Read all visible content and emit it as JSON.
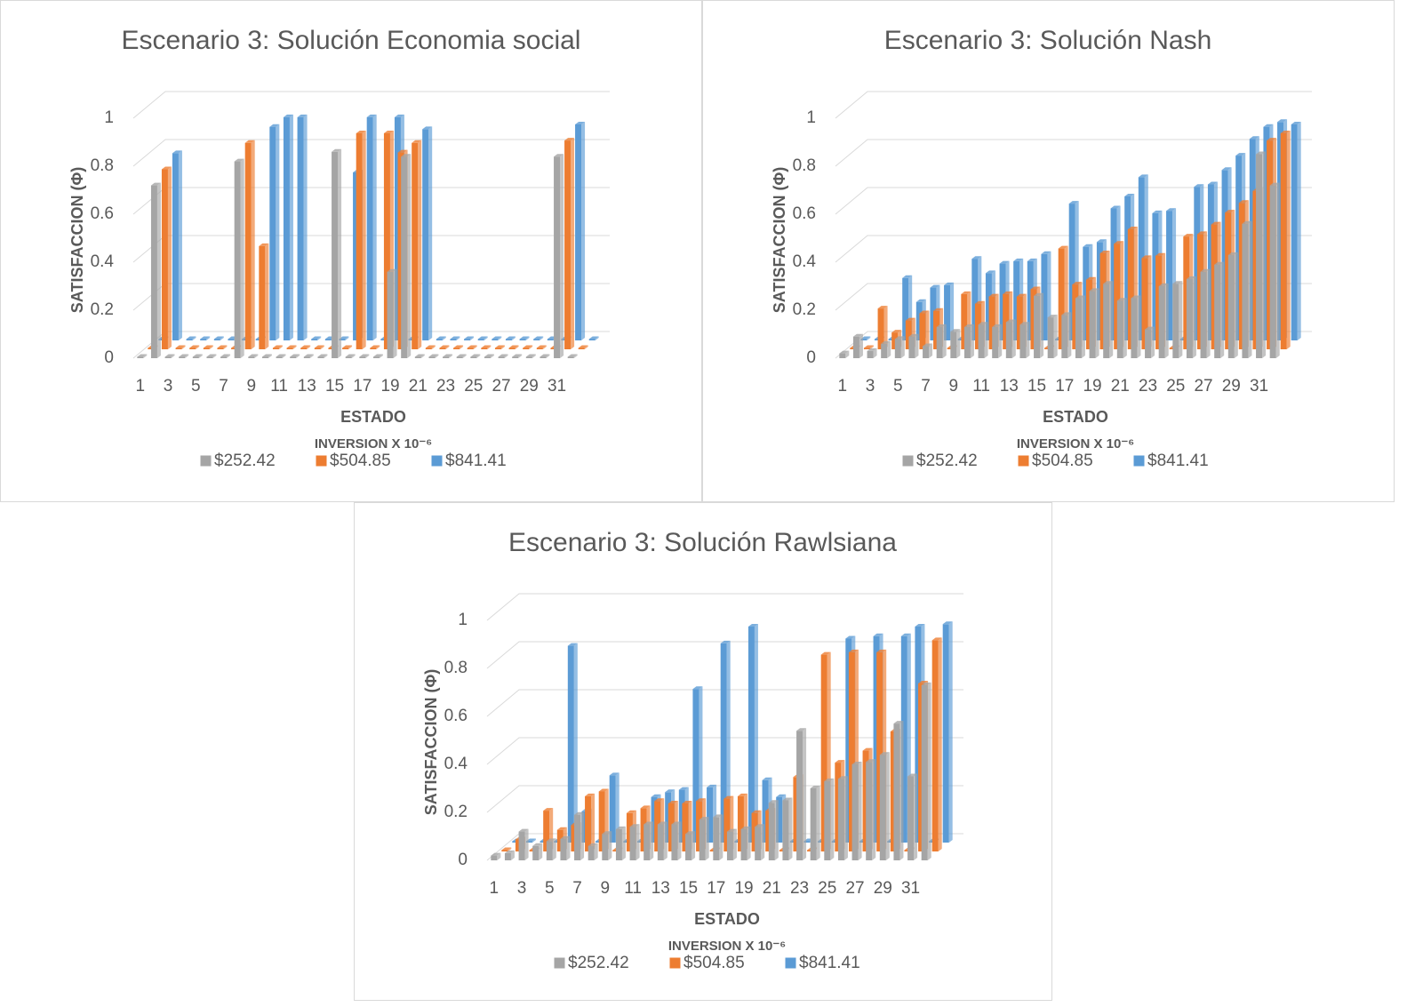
{
  "chart_data": [
    {
      "type": "bar3d",
      "title": "Escenario 3: Solución Economia social",
      "y_label": "SATISFACCION (Φ)",
      "x_label": "ESTADO",
      "legend_title": "INVERSION X 10⁻⁶",
      "categories": [
        "1",
        null,
        "3",
        null,
        "5",
        null,
        "7",
        null,
        "9",
        null,
        "11",
        null,
        "13",
        null,
        "15",
        null,
        "17",
        null,
        "19",
        null,
        "21",
        null,
        "23",
        null,
        "25",
        null,
        "27",
        null,
        "29",
        null,
        "31",
        null
      ],
      "ylim": [
        0,
        1
      ],
      "yticks": [
        0,
        0.2,
        0.4,
        0.6,
        0.8,
        1
      ],
      "grid": true,
      "legend": "bottom",
      "series": [
        {
          "name": "$252.42",
          "color": "#a5a5a5",
          "values": [
            0,
            0.72,
            0,
            0,
            0,
            0,
            0,
            0.82,
            0,
            0,
            0,
            0,
            0,
            0,
            0.86,
            0,
            0,
            0,
            0.36,
            0.84,
            0,
            0,
            0,
            0,
            0,
            0,
            0,
            0,
            0,
            0,
            0.84,
            0
          ]
        },
        {
          "name": "$504.85",
          "color": "#ed7d31",
          "values": [
            0,
            0.75,
            0,
            0,
            0,
            0,
            0,
            0.86,
            0.43,
            0,
            0,
            0,
            0,
            0,
            0,
            0.9,
            0,
            0.9,
            0.82,
            0.86,
            0,
            0,
            0,
            0,
            0,
            0,
            0,
            0,
            0,
            0,
            0.87,
            0
          ]
        },
        {
          "name": "$841.41",
          "color": "#5b9bd5",
          "values": [
            0,
            0.78,
            0,
            0,
            0,
            0,
            0,
            0,
            0.89,
            0.93,
            0.93,
            0,
            0,
            0,
            0.7,
            0.93,
            0,
            0.93,
            0,
            0.88,
            0,
            0,
            0,
            0,
            0,
            0,
            0,
            0,
            0,
            0,
            0.9,
            0
          ]
        }
      ]
    },
    {
      "type": "bar3d",
      "title": "Escenario 3: Solución Nash",
      "y_label": "SATISFACCION (Φ)",
      "x_label": "ESTADO",
      "legend_title": "INVERSION X 10⁻⁶",
      "categories": [
        "1",
        null,
        "3",
        null,
        "5",
        null,
        "7",
        null,
        "9",
        null,
        "11",
        null,
        "13",
        null,
        "15",
        null,
        "17",
        null,
        "19",
        null,
        "21",
        null,
        "23",
        null,
        "25",
        null,
        "27",
        null,
        "29",
        null,
        "31",
        null
      ],
      "ylim": [
        0,
        1
      ],
      "yticks": [
        0,
        0.2,
        0.4,
        0.6,
        0.8,
        1
      ],
      "grid": true,
      "legend": "bottom",
      "series": [
        {
          "name": "$252.42",
          "color": "#a5a5a5",
          "values": [
            0.02,
            0.09,
            0.03,
            0.06,
            0.08,
            0.09,
            0.05,
            0.13,
            0.11,
            0.13,
            0.14,
            0.13,
            0.15,
            0.14,
            0.26,
            0.17,
            0.18,
            0.25,
            0.28,
            0.31,
            0.24,
            0.25,
            0.12,
            0.3,
            0.31,
            0.33,
            0.36,
            0.39,
            0.43,
            0.56,
            0.85,
            0.72
          ]
        },
        {
          "name": "$504.85",
          "color": "#ed7d31",
          "values": [
            0,
            0,
            0.17,
            0.07,
            0.12,
            0.15,
            0.16,
            0,
            0.23,
            0.19,
            0.22,
            0.23,
            0.22,
            0.25,
            0,
            0.42,
            0.27,
            0.29,
            0.4,
            0.44,
            0.5,
            0.38,
            0.39,
            0,
            0.47,
            0.48,
            0.52,
            0.57,
            0.61,
            0.66,
            0.87,
            0.9
          ]
        },
        {
          "name": "$841.41",
          "color": "#5b9bd5",
          "values": [
            0,
            0,
            0,
            0.26,
            0.16,
            0.22,
            0.23,
            0,
            0.34,
            0.28,
            0.32,
            0.33,
            0.33,
            0.36,
            0,
            0.57,
            0.39,
            0.41,
            0.55,
            0.6,
            0.68,
            0.53,
            0.54,
            0,
            0.64,
            0.65,
            0.71,
            0.77,
            0.84,
            0.89,
            0.91,
            0.9
          ]
        }
      ]
    },
    {
      "type": "bar3d",
      "title": "Escenario 3: Solución Rawlsiana",
      "y_label": "SATISFACCION (Φ)",
      "x_label": "ESTADO",
      "legend_title": "INVERSION X 10⁻⁶",
      "categories": [
        "1",
        null,
        "3",
        null,
        "5",
        null,
        "7",
        null,
        "9",
        null,
        "11",
        null,
        "13",
        null,
        "15",
        null,
        "17",
        null,
        "19",
        null,
        "21",
        null,
        "23",
        null,
        "25",
        null,
        "27",
        null,
        "29",
        null,
        "31",
        null
      ],
      "ylim": [
        0,
        1
      ],
      "yticks": [
        0,
        0.2,
        0.4,
        0.6,
        0.8,
        1
      ],
      "grid": true,
      "legend": "bottom",
      "series": [
        {
          "name": "$252.42",
          "color": "#a5a5a5",
          "values": [
            0.02,
            0.03,
            0.12,
            0.06,
            0.08,
            0.09,
            0.19,
            0.06,
            0.11,
            0.13,
            0.14,
            0.15,
            0.15,
            0.15,
            0.11,
            0.17,
            0.18,
            0.12,
            0.13,
            0.14,
            0.24,
            0.25,
            0.54,
            0.3,
            0.33,
            0.34,
            0.4,
            0.41,
            0.44,
            0.57,
            0.35,
            0.73
          ]
        },
        {
          "name": "$504.85",
          "color": "#ed7d31",
          "values": [
            0,
            0.05,
            0,
            0.17,
            0.09,
            0.11,
            0.23,
            0.25,
            0,
            0.16,
            0.18,
            0.21,
            0.2,
            0.2,
            0.21,
            0,
            0.22,
            0.23,
            0.16,
            0.17,
            0,
            0.31,
            0,
            0.82,
            0.37,
            0.83,
            0.42,
            0.83,
            0.5,
            0,
            0.7,
            0.88
          ]
        },
        {
          "name": "$841.41",
          "color": "#5b9bd5",
          "values": [
            0,
            0,
            0,
            0,
            0.82,
            0.13,
            0,
            0.28,
            0,
            0,
            0.19,
            0.21,
            0.22,
            0.64,
            0.23,
            0.83,
            0,
            0.9,
            0.26,
            0.19,
            0,
            0,
            0,
            0,
            0.85,
            0,
            0.86,
            0,
            0.86,
            0.9,
            0,
            0.91
          ]
        }
      ]
    }
  ]
}
